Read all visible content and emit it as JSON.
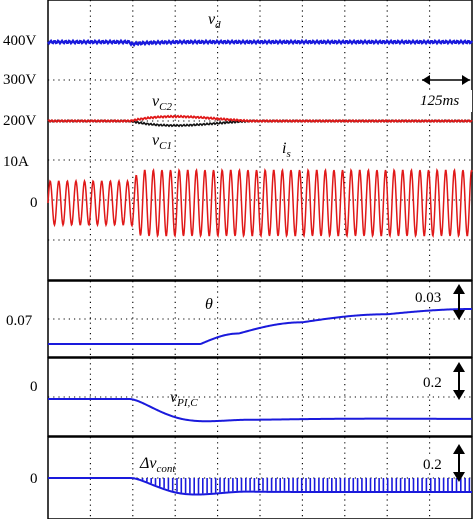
{
  "chart_data": [
    {
      "type": "line",
      "panel": "voltages-current",
      "y_tick_labels": [
        "400V",
        "300V",
        "200V",
        "10A",
        "0"
      ],
      "series": [
        {
          "name": "v",
          "subscript": "d",
          "color": "#1a1adc",
          "level_V": 400,
          "note_values_V": [
            400,
            400
          ]
        },
        {
          "name": "v",
          "subscript": "C2",
          "color": "#e01818",
          "level_V": 200
        },
        {
          "name": "v",
          "subscript": "C1",
          "color": "#111111",
          "level_V": 200
        },
        {
          "name": "i",
          "subscript": "s",
          "color": "#e01818",
          "amplitude_A_before": 10,
          "amplitude_A_after": 15
        }
      ],
      "time_scale_label": "125ms",
      "x_divisions": 10,
      "grid": true
    },
    {
      "type": "line",
      "panel": "theta",
      "series": [
        {
          "name": "θ",
          "color": "#1a1adc",
          "x_div": [
            0,
            3.6,
            4.5,
            6,
            8,
            10
          ],
          "y_rel": [
            0.0,
            0.0,
            0.3,
            0.62,
            0.85,
            1.0
          ]
        }
      ],
      "y_tick_labels": [
        "0.07"
      ],
      "scale_label": "0.03",
      "grid": true
    },
    {
      "type": "line",
      "panel": "v_PI_C",
      "series": [
        {
          "name": "v",
          "subscript": "PI,C",
          "color": "#1a1adc"
        }
      ],
      "y_tick_labels": [
        "0"
      ],
      "scale_label": "0.2",
      "grid": true
    },
    {
      "type": "line",
      "panel": "delta_v_cont",
      "series": [
        {
          "name": "Δv",
          "subscript": "cont",
          "color": "#1a1adc"
        }
      ],
      "y_tick_labels": [
        "0"
      ],
      "scale_label": "0.2",
      "grid": true
    }
  ]
}
